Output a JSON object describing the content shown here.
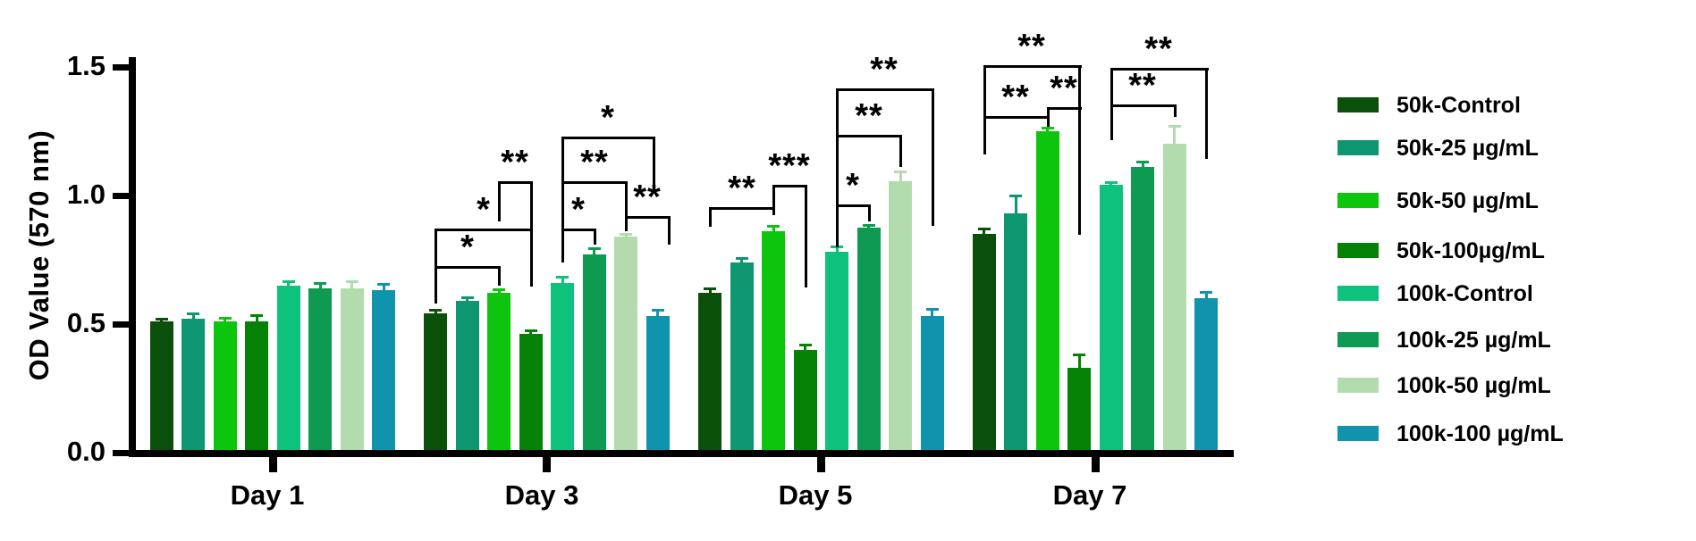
{
  "figure": {
    "background": "#ffffff",
    "axis_color": "#000000",
    "text_color": "#000000"
  },
  "chart_data": {
    "type": "bar",
    "title": "",
    "xlabel": "",
    "ylabel": "OD Value (570 nm)",
    "ylim": [
      0,
      1.5
    ],
    "ytick_values": [
      0,
      0.5,
      1.0,
      1.5
    ],
    "yticks": [
      "0.0",
      "0.5",
      "1.0",
      "1.5"
    ],
    "categories": [
      "Day 1",
      "Day 3",
      "Day 5",
      "Day 7"
    ],
    "grid": false,
    "legend_position": "right",
    "series": [
      {
        "name": "50k-Control",
        "color": "#0a4f0a",
        "values": [
          0.5,
          0.53,
          0.61,
          0.84
        ],
        "errors": [
          0.012,
          0.015,
          0.02,
          0.02
        ]
      },
      {
        "name": "50k-25 µg/mL",
        "color": "#0e9670",
        "values": [
          0.51,
          0.58,
          0.73,
          0.92
        ],
        "errors": [
          0.02,
          0.015,
          0.015,
          0.07
        ]
      },
      {
        "name": "50k-50 µg/mL",
        "color": "#0cc50c",
        "values": [
          0.5,
          0.61,
          0.85,
          1.24
        ],
        "errors": [
          0.015,
          0.015,
          0.02,
          0.015
        ]
      },
      {
        "name": "50k-100µg/mL",
        "color": "#058205",
        "values": [
          0.5,
          0.45,
          0.39,
          0.32
        ],
        "errors": [
          0.025,
          0.015,
          0.02,
          0.05
        ]
      },
      {
        "name": "100k-Control",
        "color": "#0ec17c",
        "values": [
          0.64,
          0.65,
          0.77,
          1.03
        ],
        "errors": [
          0.015,
          0.025,
          0.02,
          0.01
        ]
      },
      {
        "name": "100k-25 µg/mL",
        "color": "#0f9a53",
        "values": [
          0.63,
          0.76,
          0.865,
          1.1
        ],
        "errors": [
          0.02,
          0.025,
          0.01,
          0.02
        ]
      },
      {
        "name": "100k-50 µg/mL",
        "color": "#b2dcae",
        "values": [
          0.63,
          0.83,
          1.045,
          1.19
        ],
        "errors": [
          0.025,
          0.01,
          0.04,
          0.07
        ]
      },
      {
        "name": "100k-100 µg/mL",
        "color": "#1094ad",
        "values": [
          0.62,
          0.52,
          0.52,
          0.59
        ],
        "errors": [
          0.025,
          0.025,
          0.03,
          0.025
        ]
      }
    ],
    "significance": [
      {
        "category": "Day 3",
        "between": [
          "50k-Control",
          "50k-50 µg/mL"
        ],
        "bar1": 0,
        "bar2": 2,
        "label": "*",
        "y": 0.715,
        "end1": 0.57,
        "end2": 0.64,
        "x2_offset": 0
      },
      {
        "category": "Day 3",
        "between": [
          "50k-Control",
          "50k-100µg/mL"
        ],
        "bar1": 0,
        "bar2": 3,
        "label": "*",
        "y": 0.861,
        "end1": 0.57,
        "end2": 0.635,
        "x2_offset": 0
      },
      {
        "category": "Day 3",
        "between": [
          "50k-50 µg/mL",
          "50k-100µg/mL"
        ],
        "bar1": 2,
        "bar2": 3,
        "label": "**",
        "y": 1.045,
        "end1": 0.89,
        "end2": 0.635,
        "x2_offset": 0
      },
      {
        "category": "Day 3",
        "between": [
          "100k-Control",
          "100k-25 µg/mL"
        ],
        "bar1": 4,
        "bar2": 5,
        "label": "*",
        "y": 0.861,
        "end1": 0.73,
        "end2": 0.8,
        "x2_offset": 0
      },
      {
        "category": "Day 3",
        "between": [
          "100k-Control",
          "100k-50 µg/mL"
        ],
        "bar1": 4,
        "bar2": 6,
        "label": "**",
        "y": 1.045,
        "end1": 0.73,
        "end2": 0.85,
        "x2_offset": 0
      },
      {
        "category": "Day 3",
        "between": [
          "100k-Control",
          "100k-100 µg/mL"
        ],
        "bar1": 4,
        "bar2": 7,
        "label": "*",
        "y": 1.219,
        "end1": 0.73,
        "end2": 1.03,
        "x2_offset": -5
      },
      {
        "category": "Day 3",
        "between": [
          "100k-50 µg/mL",
          "100k-100 µg/mL"
        ],
        "bar1": 6,
        "bar2": 7,
        "label": "**",
        "y": 0.91,
        "end1": 0.85,
        "end2": 0.8,
        "x2_offset": 12
      },
      {
        "category": "Day 5",
        "between": [
          "50k-Control",
          "50k-50 µg/mL"
        ],
        "bar1": 0,
        "bar2": 2,
        "label": "**",
        "y": 0.945,
        "end1": 0.87,
        "end2": 0.915,
        "x2_offset": 0
      },
      {
        "category": "Day 5",
        "between": [
          "50k-50 µg/mL",
          "50k-100µg/mL"
        ],
        "bar1": 2,
        "bar2": 3,
        "label": "***",
        "y": 1.03,
        "end1": 0.915,
        "end2": 0.63,
        "x2_offset": 0
      },
      {
        "category": "Day 5",
        "between": [
          "100k-Control",
          "100k-25 µg/mL"
        ],
        "bar1": 4,
        "bar2": 5,
        "label": "*",
        "y": 0.955,
        "end1": 0.79,
        "end2": 0.89,
        "x2_offset": 0
      },
      {
        "category": "Day 5",
        "between": [
          "100k-Control",
          "100k-50 µg/mL"
        ],
        "bar1": 4,
        "bar2": 6,
        "label": "**",
        "y": 1.225,
        "end1": 0.79,
        "end2": 1.1,
        "x2_offset": 0
      },
      {
        "category": "Day 5",
        "between": [
          "100k-Control",
          "100k-100 µg/mL"
        ],
        "bar1": 4,
        "bar2": 7,
        "label": "**",
        "y": 1.405,
        "end1": 0.79,
        "end2": 0.87,
        "x2_offset": 0
      },
      {
        "category": "Day 7",
        "between": [
          "50k-Control",
          "50k-50 µg/mL"
        ],
        "bar1": 0,
        "bar2": 2,
        "label": "**",
        "y": 1.3,
        "end1": 1.15,
        "end2": 1.26,
        "x2_offset": 0
      },
      {
        "category": "Day 7",
        "between": [
          "50k-50 µg/mL",
          "50k-100µg/mL"
        ],
        "bar1": 2,
        "bar2": 3,
        "label": "**",
        "y": 1.335,
        "end1": 1.26,
        "end2": 0.84,
        "x2_offset": 0
      },
      {
        "category": "Day 7",
        "between": [
          "50k-Control",
          "50k-100µg/mL"
        ],
        "bar1": 0,
        "bar2": 3,
        "label": "**",
        "y": 1.495,
        "end1": 1.15,
        "end2": 0.84,
        "x2_offset": 0
      },
      {
        "category": "Day 7",
        "between": [
          "100k-Control",
          "100k-50 µg/mL"
        ],
        "bar1": 4,
        "bar2": 6,
        "label": "**",
        "y": 1.345,
        "end1": 1.205,
        "end2": 1.295,
        "x2_offset": 0
      },
      {
        "category": "Day 7",
        "between": [
          "100k-Control",
          "100k-100 µg/mL"
        ],
        "bar1": 4,
        "bar2": 7,
        "label": "**",
        "y": 1.485,
        "end1": 1.205,
        "end2": 1.13,
        "x2_offset": 0
      }
    ]
  }
}
